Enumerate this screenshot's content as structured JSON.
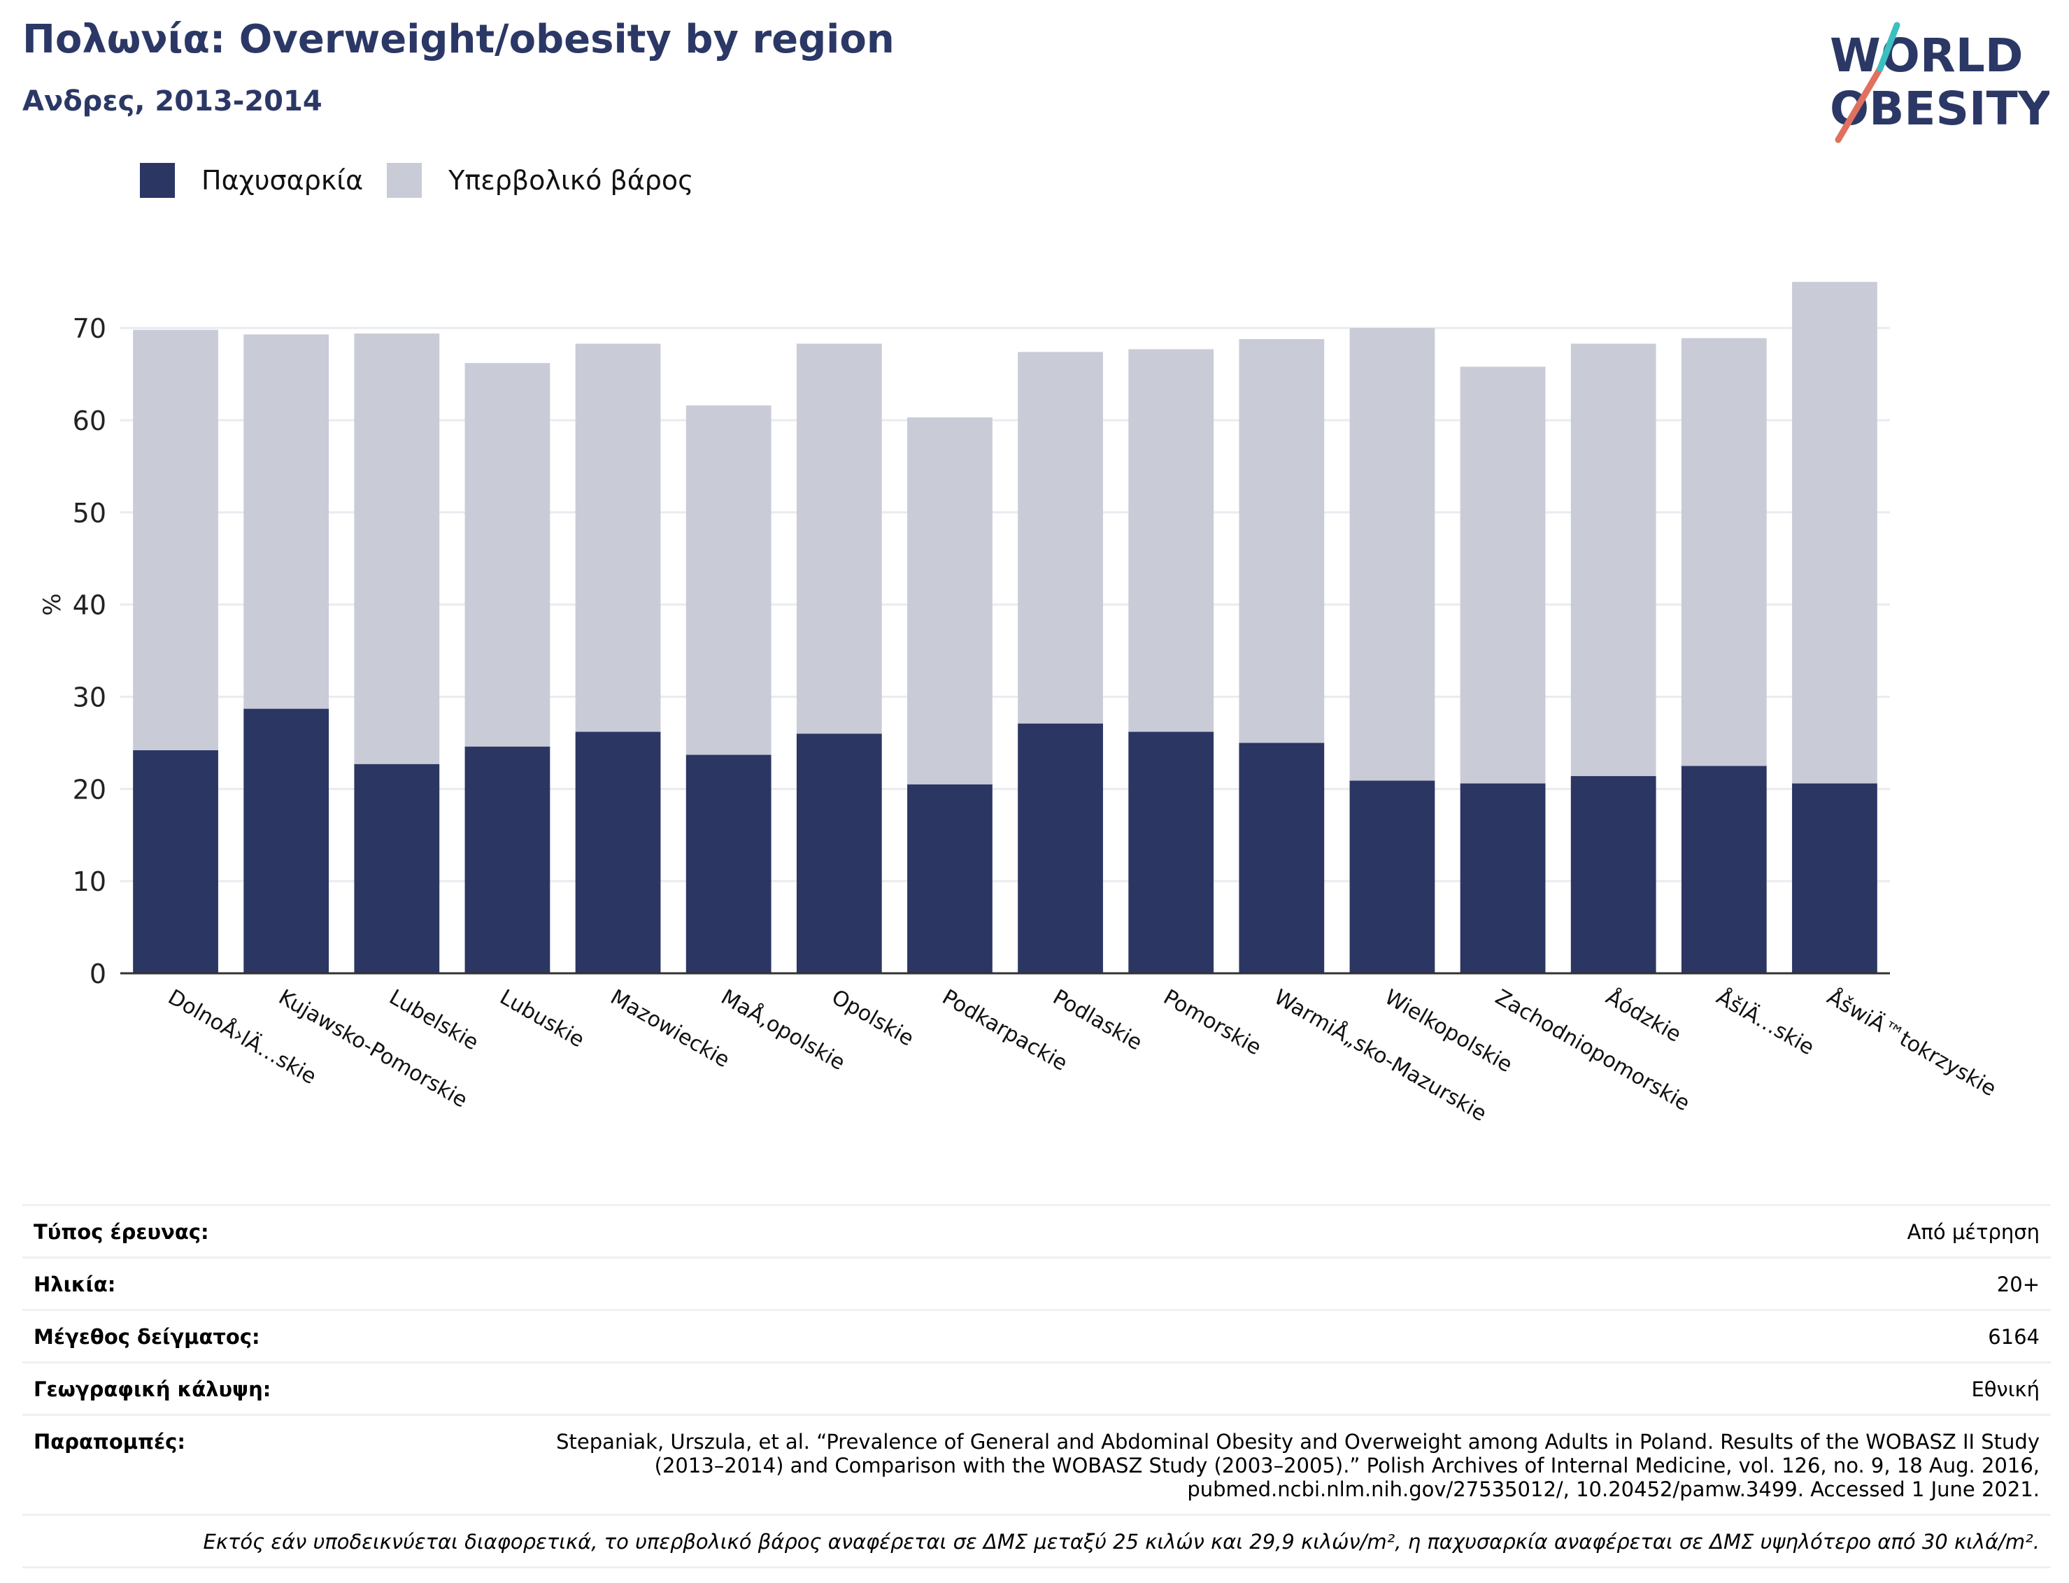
{
  "header": {
    "title": "Πολωνία: Overweight/obesity by region",
    "subtitle": "Ανδρες, 2013-2014"
  },
  "logo": {
    "line1": "WORLD",
    "line2": "OBESITY",
    "colors": {
      "text": "#2b3866",
      "slash_red": "#e0705f",
      "slash_teal": "#3cbfbf"
    }
  },
  "legend": {
    "items": [
      {
        "label": "Παχυσαρκία",
        "color": "#2b3663"
      },
      {
        "label": "Υπερβολικό βάρος",
        "color": "#c9cbd7"
      }
    ]
  },
  "chart_data": {
    "type": "bar",
    "stacked": true,
    "categories": [
      "DolnoÅ›lÄ…skie",
      "Kujawsko-Pomorskie",
      "Lubelskie",
      "Lubuskie",
      "Mazowieckie",
      "MaÅ‚opolskie",
      "Opolskie",
      "Podkarpackie",
      "Podlaskie",
      "Pomorskie",
      "WarmiÅ„sko-Mazurskie",
      "Wielkopolskie",
      "Zachodniopomorskie",
      "Åódzkie",
      "ÅšlÄ…skie",
      "ÅšwiÄ™tokrzyskie"
    ],
    "series": [
      {
        "name": "Παχυσαρκία",
        "color": "#2b3663",
        "values": [
          24.2,
          28.7,
          22.7,
          24.6,
          26.2,
          23.7,
          26.0,
          20.5,
          27.1,
          26.2,
          25.0,
          20.9,
          20.6,
          21.4,
          22.5,
          20.6
        ]
      },
      {
        "name": "Υπερβολικό βάρος",
        "color": "#c9cbd7",
        "values": [
          45.6,
          40.6,
          46.7,
          41.6,
          42.1,
          37.9,
          42.3,
          39.8,
          40.3,
          41.5,
          43.8,
          49.1,
          45.2,
          46.9,
          46.4,
          54.4
        ]
      }
    ],
    "ylabel": "%",
    "xlabel": "",
    "ylim": [
      0,
      76
    ],
    "yticks": [
      0,
      10,
      20,
      30,
      40,
      50,
      60,
      70
    ],
    "grid": true
  },
  "details": {
    "rows": [
      {
        "key": "Τύπος έρευνας:",
        "value": "Από μέτρηση"
      },
      {
        "key": "Ηλικία:",
        "value": "20+"
      },
      {
        "key": "Μέγεθος δείγματος:",
        "value": "6164"
      },
      {
        "key": "Γεωγραφική κάλυψη:",
        "value": "Εθνική"
      },
      {
        "key": "Παραπομπές:",
        "value": "Stepaniak, Urszula, et al. “Prevalence of General and Abdominal Obesity and Overweight among Adults in Poland. Results of the WOBASZ II Study (2013–2014) and Comparison with the WOBASZ Study (2003–2005).” Polish Archives of Internal Medicine, vol. 126, no. 9, 18 Aug. 2016, pubmed.ncbi.nlm.nih.gov/27535012/, 10.20452/pamw.3499. Accessed 1 June 2021."
      }
    ],
    "note": "Εκτός εάν υποδεικνύεται διαφορετικά, το υπερβολικό βάρος αναφέρεται σε ΔΜΣ μεταξύ 25 κιλών και 29,9 κιλών/m², η παχυσαρκία αναφέρεται σε ΔΜΣ υψηλότερο από 30 κιλά/m²."
  }
}
